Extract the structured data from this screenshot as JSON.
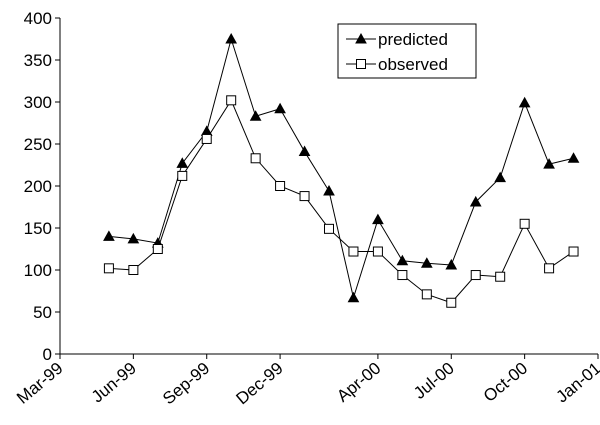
{
  "chart_data": {
    "type": "line",
    "x": [
      "1999-05",
      "1999-06",
      "1999-07",
      "1999-08",
      "1999-09",
      "1999-10",
      "1999-11",
      "1999-12",
      "2000-01",
      "2000-02",
      "2000-03",
      "2000-04",
      "2000-05",
      "2000-06",
      "2000-07",
      "2000-08",
      "2000-09",
      "2000-10",
      "2000-11",
      "2000-12"
    ],
    "series": [
      {
        "name": "predicted",
        "color": "#000000",
        "marker": "triangle",
        "values": [
          140,
          137,
          132,
          227,
          265,
          375,
          283,
          292,
          241,
          194,
          67,
          160,
          111,
          108,
          106,
          181,
          210,
          299,
          226,
          233
        ]
      },
      {
        "name": "observed",
        "color": "#000000",
        "marker": "square",
        "values": [
          102,
          100,
          125,
          212,
          256,
          302,
          233,
          200,
          188,
          149,
          122,
          122,
          94,
          71,
          61,
          94,
          92,
          155,
          102,
          122
        ]
      }
    ],
    "xlim": [
      "1999-03",
      "2001-01"
    ],
    "xticks": [
      {
        "value": "1999-03",
        "label": "Mar-99"
      },
      {
        "value": "1999-06",
        "label": "Jun-99"
      },
      {
        "value": "1999-09",
        "label": "Sep-99"
      },
      {
        "value": "1999-12",
        "label": "Dec-99"
      },
      {
        "value": "2000-04",
        "label": "Apr-00"
      },
      {
        "value": "2000-07",
        "label": "Jul-00"
      },
      {
        "value": "2000-10",
        "label": "Oct-00"
      },
      {
        "value": "2001-01",
        "label": "Jan-01"
      }
    ],
    "ylim": [
      0,
      400
    ],
    "yticks": [
      0,
      50,
      100,
      150,
      200,
      250,
      300,
      350,
      400
    ],
    "legend": "top-right"
  }
}
